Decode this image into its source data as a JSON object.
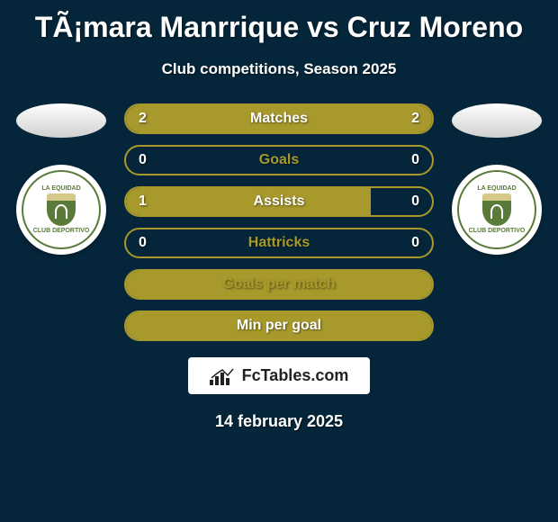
{
  "title": "TÃ¡mara Manrrique vs Cruz Moreno",
  "subtitle": "Club competitions, Season 2025",
  "date": "14 february 2025",
  "brand": "FcTables.com",
  "colors": {
    "background": "#05263a",
    "accent": "#a7992c",
    "text": "#ffffff",
    "club_green": "#5a7a3a",
    "club_cream": "#d4c989"
  },
  "club_left": {
    "name": "LA EQUIDAD",
    "subtitle": "CLUB DEPORTIVO"
  },
  "club_right": {
    "name": "LA EQUIDAD",
    "subtitle": "CLUB DEPORTIVO"
  },
  "stats": [
    {
      "label": "Matches",
      "left_value": "2",
      "right_value": "2",
      "left_pct": 50,
      "right_pct": 50,
      "full_bar": true,
      "label_color": "white"
    },
    {
      "label": "Goals",
      "left_value": "0",
      "right_value": "0",
      "left_pct": 0,
      "right_pct": 0,
      "full_bar": false,
      "label_color": "accent"
    },
    {
      "label": "Assists",
      "left_value": "1",
      "right_value": "0",
      "left_pct": 80,
      "right_pct": 0,
      "full_bar": false,
      "label_color": "white"
    },
    {
      "label": "Hattricks",
      "left_value": "0",
      "right_value": "0",
      "left_pct": 0,
      "right_pct": 0,
      "full_bar": false,
      "label_color": "accent"
    },
    {
      "label": "Goals per match",
      "left_value": "",
      "right_value": "",
      "left_pct": 0,
      "right_pct": 0,
      "full_bar": true,
      "label_color": "accent"
    },
    {
      "label": "Min per goal",
      "left_value": "",
      "right_value": "",
      "left_pct": 0,
      "right_pct": 0,
      "full_bar": true,
      "label_color": "white"
    }
  ]
}
